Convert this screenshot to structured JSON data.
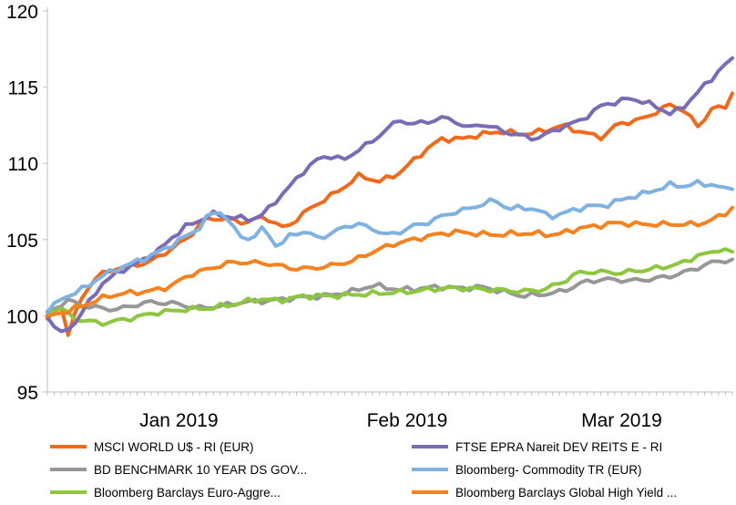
{
  "chart_data": {
    "type": "line",
    "title": "",
    "xlabel": "",
    "ylabel": "",
    "ylim": [
      95,
      120
    ],
    "yticks": [
      95,
      100,
      105,
      110,
      115,
      120
    ],
    "x_ticks": [
      {
        "label": "Jan 2019",
        "index": 19
      },
      {
        "label": "Feb 2019",
        "index": 52
      },
      {
        "label": "Mar 2019",
        "index": 83
      }
    ],
    "n_points": 100,
    "grid": false,
    "legend_position": "bottom",
    "series": [
      {
        "name": "MSCI WORLD U$ - RI (EUR)",
        "color": "#f06a1d",
        "keypoints": [
          [
            0,
            99.8
          ],
          [
            2,
            100.7
          ],
          [
            3,
            98.8
          ],
          [
            5,
            101.1
          ],
          [
            7,
            102.5
          ],
          [
            10,
            103.1
          ],
          [
            15,
            103.5
          ],
          [
            18,
            104.3
          ],
          [
            21,
            105.2
          ],
          [
            23,
            106.3
          ],
          [
            26,
            106.4
          ],
          [
            29,
            106.1
          ],
          [
            32,
            106.5
          ],
          [
            35,
            105.7
          ],
          [
            38,
            106.8
          ],
          [
            40,
            107.4
          ],
          [
            43,
            108.2
          ],
          [
            46,
            109.2
          ],
          [
            49,
            108.8
          ],
          [
            52,
            109.4
          ],
          [
            55,
            110.6
          ],
          [
            58,
            111.6
          ],
          [
            61,
            111.6
          ],
          [
            64,
            111.9
          ],
          [
            67,
            112.1
          ],
          [
            70,
            111.9
          ],
          [
            73,
            112.1
          ],
          [
            76,
            112.5
          ],
          [
            79,
            112.0
          ],
          [
            82,
            111.7
          ],
          [
            84,
            112.6
          ],
          [
            87,
            112.8
          ],
          [
            90,
            113.4
          ],
          [
            92,
            113.9
          ],
          [
            94,
            113.4
          ],
          [
            96,
            112.4
          ],
          [
            98,
            113.6
          ],
          [
            100,
            113.7
          ],
          [
            101,
            114.6
          ]
        ]
      },
      {
        "name": "BD BENCHMARK 10 YEAR DS GOV...",
        "color": "#979797",
        "keypoints": [
          [
            0,
            100.2
          ],
          [
            3,
            101.0
          ],
          [
            6,
            100.6
          ],
          [
            10,
            100.4
          ],
          [
            15,
            100.9
          ],
          [
            19,
            100.8
          ],
          [
            22,
            100.5
          ],
          [
            25,
            100.6
          ],
          [
            29,
            100.9
          ],
          [
            33,
            101.0
          ],
          [
            37,
            101.2
          ],
          [
            41,
            101.3
          ],
          [
            45,
            101.6
          ],
          [
            48,
            102.0
          ],
          [
            52,
            101.7
          ],
          [
            55,
            101.8
          ],
          [
            58,
            101.9
          ],
          [
            61,
            101.8
          ],
          [
            64,
            101.9
          ],
          [
            67,
            101.6
          ],
          [
            70,
            101.3
          ],
          [
            73,
            101.4
          ],
          [
            76,
            101.6
          ],
          [
            79,
            102.2
          ],
          [
            82,
            102.4
          ],
          [
            86,
            102.3
          ],
          [
            89,
            102.4
          ],
          [
            92,
            102.6
          ],
          [
            95,
            103.0
          ],
          [
            98,
            103.5
          ],
          [
            101,
            103.7
          ]
        ]
      },
      {
        "name": "Bloomberg Barclays Euro-Aggre...",
        "color": "#8dc63f",
        "keypoints": [
          [
            0,
            100.3
          ],
          [
            2,
            100.5
          ],
          [
            4,
            99.8
          ],
          [
            8,
            99.5
          ],
          [
            12,
            99.8
          ],
          [
            16,
            100.2
          ],
          [
            20,
            100.4
          ],
          [
            24,
            100.5
          ],
          [
            28,
            100.8
          ],
          [
            31,
            101.1
          ],
          [
            34,
            101.0
          ],
          [
            38,
            101.3
          ],
          [
            42,
            101.3
          ],
          [
            46,
            101.4
          ],
          [
            50,
            101.5
          ],
          [
            54,
            101.6
          ],
          [
            58,
            101.8
          ],
          [
            62,
            101.8
          ],
          [
            66,
            101.7
          ],
          [
            70,
            101.6
          ],
          [
            73,
            101.7
          ],
          [
            76,
            102.2
          ],
          [
            78,
            102.8
          ],
          [
            81,
            102.9
          ],
          [
            84,
            102.8
          ],
          [
            88,
            103.0
          ],
          [
            91,
            103.2
          ],
          [
            94,
            103.5
          ],
          [
            96,
            104.0
          ],
          [
            98,
            104.1
          ],
          [
            99,
            104.4
          ],
          [
            101,
            104.2
          ]
        ]
      },
      {
        "name": "FTSE EPRA Nareit DEV REITS E - RI",
        "color": "#7b6bb5",
        "keypoints": [
          [
            0,
            99.9
          ],
          [
            2,
            98.8
          ],
          [
            4,
            99.5
          ],
          [
            6,
            100.8
          ],
          [
            8,
            102.1
          ],
          [
            11,
            103.0
          ],
          [
            14,
            103.6
          ],
          [
            17,
            104.5
          ],
          [
            20,
            105.8
          ],
          [
            22,
            106.1
          ],
          [
            24,
            106.7
          ],
          [
            27,
            106.5
          ],
          [
            30,
            106.3
          ],
          [
            32,
            106.7
          ],
          [
            34,
            107.7
          ],
          [
            36,
            108.6
          ],
          [
            38,
            109.6
          ],
          [
            40,
            110.3
          ],
          [
            42,
            110.5
          ],
          [
            44,
            110.2
          ],
          [
            46,
            111.0
          ],
          [
            48,
            111.4
          ],
          [
            50,
            112.3
          ],
          [
            52,
            112.8
          ],
          [
            54,
            112.6
          ],
          [
            56,
            112.7
          ],
          [
            58,
            113.0
          ],
          [
            60,
            112.8
          ],
          [
            62,
            112.3
          ],
          [
            64,
            112.6
          ],
          [
            66,
            112.3
          ],
          [
            68,
            112.0
          ],
          [
            70,
            111.8
          ],
          [
            72,
            111.6
          ],
          [
            74,
            112.0
          ],
          [
            76,
            112.4
          ],
          [
            78,
            112.7
          ],
          [
            80,
            113.2
          ],
          [
            82,
            113.9
          ],
          [
            84,
            114.0
          ],
          [
            86,
            114.3
          ],
          [
            88,
            114.0
          ],
          [
            90,
            113.7
          ],
          [
            92,
            113.2
          ],
          [
            94,
            113.8
          ],
          [
            96,
            114.7
          ],
          [
            98,
            115.6
          ],
          [
            100,
            116.5
          ],
          [
            101,
            116.9
          ]
        ]
      },
      {
        "name": "Bloomberg- Commodity TR (EUR)",
        "color": "#7fb2e0",
        "keypoints": [
          [
            0,
            100.2
          ],
          [
            2,
            101.1
          ],
          [
            5,
            101.7
          ],
          [
            8,
            102.6
          ],
          [
            11,
            103.2
          ],
          [
            14,
            103.7
          ],
          [
            17,
            104.3
          ],
          [
            20,
            105.1
          ],
          [
            22,
            105.6
          ],
          [
            24,
            106.7
          ],
          [
            26,
            106.8
          ],
          [
            28,
            105.3
          ],
          [
            30,
            105.0
          ],
          [
            32,
            105.8
          ],
          [
            34,
            104.4
          ],
          [
            36,
            105.4
          ],
          [
            38,
            105.5
          ],
          [
            40,
            105.1
          ],
          [
            42,
            105.4
          ],
          [
            44,
            105.9
          ],
          [
            46,
            106.0
          ],
          [
            48,
            105.7
          ],
          [
            50,
            105.3
          ],
          [
            52,
            105.5
          ],
          [
            54,
            105.9
          ],
          [
            56,
            106.1
          ],
          [
            58,
            106.5
          ],
          [
            60,
            106.8
          ],
          [
            62,
            107.0
          ],
          [
            64,
            107.3
          ],
          [
            66,
            107.6
          ],
          [
            68,
            107.0
          ],
          [
            70,
            107.1
          ],
          [
            72,
            107.0
          ],
          [
            74,
            106.5
          ],
          [
            76,
            106.7
          ],
          [
            78,
            107.0
          ],
          [
            80,
            107.2
          ],
          [
            82,
            107.2
          ],
          [
            84,
            107.5
          ],
          [
            86,
            107.8
          ],
          [
            88,
            108.0
          ],
          [
            90,
            108.3
          ],
          [
            92,
            108.6
          ],
          [
            94,
            108.5
          ],
          [
            96,
            108.7
          ],
          [
            98,
            108.6
          ],
          [
            100,
            108.3
          ],
          [
            101,
            108.3
          ]
        ]
      },
      {
        "name": "Bloomberg Barclays Global High Yield ...",
        "color": "#f58220",
        "keypoints": [
          [
            0,
            100.0
          ],
          [
            3,
            100.3
          ],
          [
            6,
            100.8
          ],
          [
            9,
            101.3
          ],
          [
            12,
            101.5
          ],
          [
            15,
            101.6
          ],
          [
            18,
            101.9
          ],
          [
            21,
            102.7
          ],
          [
            24,
            103.1
          ],
          [
            27,
            103.5
          ],
          [
            30,
            103.5
          ],
          [
            33,
            103.4
          ],
          [
            36,
            103.1
          ],
          [
            39,
            103.1
          ],
          [
            42,
            103.3
          ],
          [
            45,
            103.6
          ],
          [
            48,
            104.2
          ],
          [
            51,
            104.7
          ],
          [
            54,
            105.0
          ],
          [
            57,
            105.3
          ],
          [
            60,
            105.5
          ],
          [
            63,
            105.4
          ],
          [
            66,
            105.3
          ],
          [
            69,
            105.4
          ],
          [
            72,
            105.4
          ],
          [
            75,
            105.3
          ],
          [
            78,
            105.7
          ],
          [
            81,
            105.9
          ],
          [
            84,
            106.1
          ],
          [
            87,
            106.0
          ],
          [
            90,
            106.0
          ],
          [
            93,
            106.0
          ],
          [
            96,
            106.0
          ],
          [
            98,
            106.3
          ],
          [
            100,
            106.7
          ],
          [
            101,
            107.1
          ]
        ]
      }
    ]
  }
}
